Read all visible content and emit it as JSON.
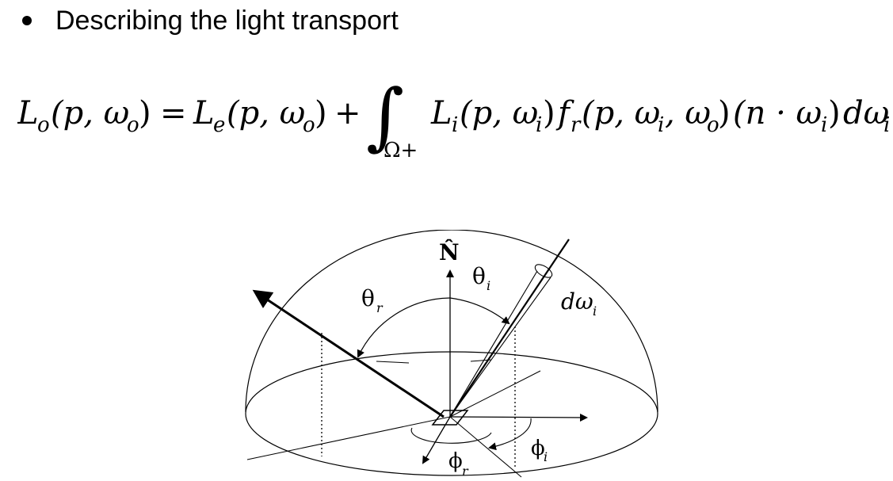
{
  "slide": {
    "bullet": "Describing the light transport"
  },
  "equation": {
    "lhs": "L",
    "lhs_sub": "o",
    "lhs_args": "(p, ω",
    "lhs_args_sub": "o",
    "lhs_close": ")",
    "equals": "=",
    "emit": "L",
    "emit_sub": "e",
    "emit_args": "(p, ω",
    "emit_args_sub": "o",
    "emit_close": ")",
    "plus": "+",
    "integral": "∫",
    "domain": "Ω+",
    "integrand_L": "L",
    "integrand_L_sub": "i",
    "integrand_L_args": "(p, ω",
    "integrand_L_args_sub": "i",
    "integrand_L_close": ")",
    "brdf": "f",
    "brdf_sub": "r",
    "brdf_args": "(p, ω",
    "brdf_args_sub1": "i",
    "brdf_args_mid": ", ω",
    "brdf_args_sub2": "o",
    "brdf_close": ")",
    "cos_open": "(n · ω",
    "cos_sub": "i",
    "cos_close": ")",
    "measure": "dω",
    "measure_sub": "i"
  },
  "diagram": {
    "normal_label": "N̂",
    "theta_i": "θ",
    "theta_i_sub": "i",
    "theta_r": "θ",
    "theta_r_sub": "r",
    "domega": "dω",
    "domega_sub": "i",
    "phi_i": "ϕ",
    "phi_i_sub": "i",
    "phi_r": "ϕ",
    "phi_r_sub": "r"
  }
}
